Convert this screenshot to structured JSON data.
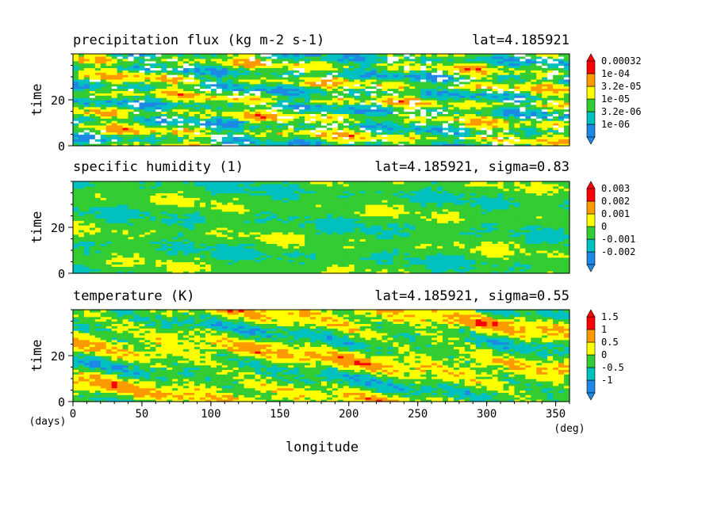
{
  "chart_data": [
    {
      "type": "heatmap",
      "title": "precipitation flux (kg m-2 s-1)",
      "subtitle": "lat=4.185921",
      "ylabel": "time",
      "xlim": [
        0,
        360
      ],
      "ylim": [
        0,
        40
      ],
      "yticks": [
        0,
        20
      ],
      "colorbar": {
        "labels": [
          "0.00032",
          "1e-04",
          "3.2e-05",
          "1e-05",
          "3.2e-06",
          "1e-06"
        ],
        "colors": [
          "#1e88e5",
          "#00c0c0",
          "#33cc33",
          "#ffff00",
          "#ff9900",
          "#ff0000"
        ]
      }
    },
    {
      "type": "heatmap",
      "title": "specific humidity (1)",
      "subtitle": "lat=4.185921, sigma=0.83",
      "ylabel": "time",
      "xlim": [
        0,
        360
      ],
      "ylim": [
        0,
        40
      ],
      "yticks": [
        0,
        20
      ],
      "colorbar": {
        "labels": [
          "0.003",
          "0.002",
          "0.001",
          "0",
          "-0.001",
          "-0.002"
        ],
        "colors": [
          "#1e88e5",
          "#00c0c0",
          "#33cc33",
          "#ffff00",
          "#ff9900",
          "#ff0000"
        ]
      }
    },
    {
      "type": "heatmap",
      "title": "temperature (K)",
      "subtitle": "lat=4.185921, sigma=0.55",
      "ylabel": "time",
      "xlabel": "longitude",
      "xlim": [
        0,
        360
      ],
      "ylim": [
        0,
        40
      ],
      "yticks": [
        0,
        20
      ],
      "xticks": [
        0,
        50,
        100,
        150,
        200,
        250,
        300,
        350
      ],
      "xunit": "(deg)",
      "yunit": "(days)",
      "colorbar": {
        "labels": [
          "1.5",
          "1",
          "0.5",
          "0",
          "-0.5",
          "-1"
        ],
        "colors": [
          "#1e88e5",
          "#00c0c0",
          "#33cc33",
          "#ffff00",
          "#ff9900",
          "#ff0000"
        ]
      }
    }
  ]
}
